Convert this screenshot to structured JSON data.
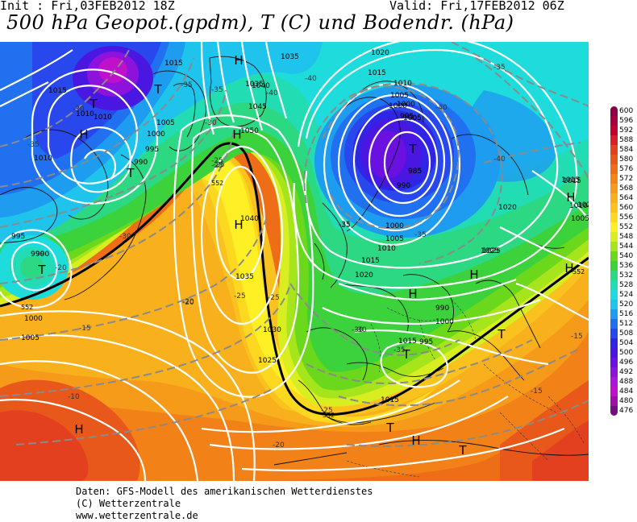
{
  "header": {
    "init": "Init : Fri,03FEB2012 18Z",
    "valid": "Valid: Fri,17FEB2012 06Z",
    "title": "500 hPa Geopot.(gpdm), T (C) und Bodendr. (hPa)"
  },
  "credits": [
    "Daten: GFS-Modell des amerikanischen Wetterdienstes",
    "(C) Wetterzentrale",
    "www.wetterzentrale.de"
  ],
  "legend": {
    "levels": [
      {
        "value": "600",
        "color": "#8c0046"
      },
      {
        "value": "596",
        "color": "#a8003c"
      },
      {
        "value": "592",
        "color": "#c40030"
      },
      {
        "value": "588",
        "color": "#d81e2a"
      },
      {
        "value": "584",
        "color": "#e2401e"
      },
      {
        "value": "580",
        "color": "#e8581a"
      },
      {
        "value": "576",
        "color": "#ee6e18"
      },
      {
        "value": "572",
        "color": "#f28418"
      },
      {
        "value": "568",
        "color": "#f69a1a"
      },
      {
        "value": "564",
        "color": "#f8b01c"
      },
      {
        "value": "560",
        "color": "#fac21e"
      },
      {
        "value": "556",
        "color": "#fcd820"
      },
      {
        "value": "552",
        "color": "#fef024"
      },
      {
        "value": "548",
        "color": "#d8ee20"
      },
      {
        "value": "544",
        "color": "#a6e41c"
      },
      {
        "value": "540",
        "color": "#6cd81c"
      },
      {
        "value": "536",
        "color": "#3cd23c"
      },
      {
        "value": "532",
        "color": "#2cd882"
      },
      {
        "value": "528",
        "color": "#22dcb4"
      },
      {
        "value": "524",
        "color": "#1edcdc"
      },
      {
        "value": "520",
        "color": "#1ec4ec"
      },
      {
        "value": "516",
        "color": "#1e9cf0"
      },
      {
        "value": "512",
        "color": "#2070f0"
      },
      {
        "value": "508",
        "color": "#2848ee"
      },
      {
        "value": "504",
        "color": "#3024e6"
      },
      {
        "value": "500",
        "color": "#4a16e2"
      },
      {
        "value": "496",
        "color": "#6a10e0"
      },
      {
        "value": "492",
        "color": "#8c12dc"
      },
      {
        "value": "488",
        "color": "#ac16d8"
      },
      {
        "value": "484",
        "color": "#c010cc"
      },
      {
        "value": "480",
        "color": "#a010a8"
      },
      {
        "value": "476",
        "color": "#70107c"
      }
    ]
  },
  "map": {
    "pressure_systems": [
      {
        "type": "H"
      },
      {
        "type": "H"
      },
      {
        "type": "H"
      },
      {
        "type": "H"
      },
      {
        "type": "H"
      },
      {
        "type": "H"
      },
      {
        "type": "H"
      },
      {
        "type": "H"
      },
      {
        "type": "H"
      },
      {
        "type": "H"
      },
      {
        "type": "T"
      },
      {
        "type": "T"
      },
      {
        "type": "T"
      },
      {
        "type": "T"
      },
      {
        "type": "T"
      },
      {
        "type": "T"
      },
      {
        "type": "T"
      },
      {
        "type": "T"
      },
      {
        "type": "T"
      }
    ],
    "isobar_labels": [
      "1015",
      "1015",
      "1010",
      "1035",
      "1020",
      "1015",
      "1010",
      "1005",
      "1000",
      "1005",
      "1000",
      "995",
      "990",
      "985",
      "1035",
      "1040",
      "1045",
      "1050",
      "1010",
      "1005",
      "1000",
      "995",
      "990",
      "990",
      "1000",
      "1005",
      "1010",
      "1015",
      "1020",
      "1025",
      "1020",
      "1025",
      "1015",
      "1020",
      "1015",
      "1015",
      "1040",
      "1035",
      "1030",
      "1025",
      "1010",
      "1005",
      "1000",
      "995",
      "990",
      "985",
      "1015",
      "1010",
      "1005",
      "1000",
      "995",
      "990"
    ],
    "temp_labels": [
      "-35",
      "-30",
      "-35",
      "-25",
      "-30",
      "-35",
      "-40",
      "-40",
      "-35",
      "-40",
      "-35",
      "-30",
      "-25",
      "-20",
      "-25",
      "-25",
      "-30",
      "-35",
      "-15",
      "-20",
      "-15",
      "-10",
      "-25",
      "-20",
      "-15",
      "-35",
      "-30",
      "-25",
      "-20",
      "-40",
      "-35"
    ],
    "line_labels": [
      "552",
      "552",
      "552",
      "552"
    ]
  }
}
